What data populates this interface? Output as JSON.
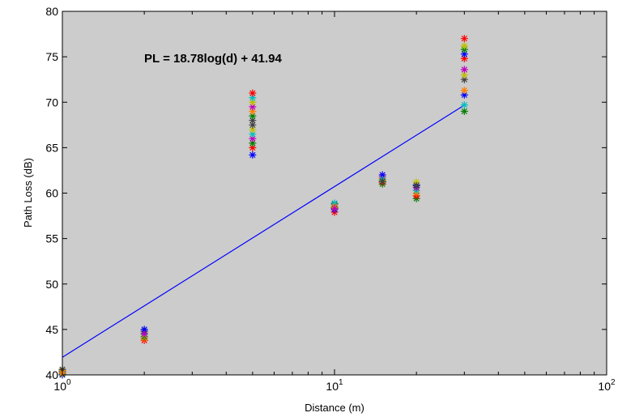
{
  "chart_data": {
    "type": "scatter",
    "title": "",
    "xlabel": "Distance (m)",
    "ylabel": "Path Loss (dB)",
    "x_scale": "log",
    "xlim": [
      1,
      100
    ],
    "ylim": [
      40,
      80
    ],
    "x_tick_labels": [
      "10",
      "10",
      "10"
    ],
    "x_tick_exponents": [
      "0",
      "1",
      "2"
    ],
    "x_tick_values": [
      1,
      10,
      100
    ],
    "y_ticks": [
      "40",
      "45",
      "50",
      "55",
      "60",
      "65",
      "70",
      "75",
      "80"
    ],
    "y_tick_values": [
      40,
      45,
      50,
      55,
      60,
      65,
      70,
      75,
      80
    ],
    "grid": false,
    "legend": false,
    "background": "#cccccc",
    "annotation": "PL = 18.78log(d) + 41.94",
    "fit_line": {
      "color": "#0000ff",
      "x": [
        1,
        30
      ],
      "y": [
        41.94,
        69.68
      ]
    },
    "marker": "*",
    "marker_colors": [
      "#0000ff",
      "#008000",
      "#ff0000",
      "#00bfbf",
      "#bf00bf",
      "#bfbf00",
      "#3f3f3f",
      "#ff8000"
    ],
    "points": [
      {
        "x": 1,
        "y": 40.0,
        "c": 0
      },
      {
        "x": 1,
        "y": 40.1,
        "c": 1
      },
      {
        "x": 1,
        "y": 40.2,
        "c": 2
      },
      {
        "x": 1,
        "y": 40.3,
        "c": 3
      },
      {
        "x": 1,
        "y": 40.4,
        "c": 4
      },
      {
        "x": 1,
        "y": 40.5,
        "c": 5
      },
      {
        "x": 1,
        "y": 40.6,
        "c": 6
      },
      {
        "x": 1,
        "y": 40.2,
        "c": 7
      },
      {
        "x": 2,
        "y": 43.8,
        "c": 2
      },
      {
        "x": 2,
        "y": 44.0,
        "c": 7
      },
      {
        "x": 2,
        "y": 44.2,
        "c": 1
      },
      {
        "x": 2,
        "y": 44.4,
        "c": 5
      },
      {
        "x": 2,
        "y": 44.6,
        "c": 3
      },
      {
        "x": 2,
        "y": 44.8,
        "c": 6
      },
      {
        "x": 2,
        "y": 45.0,
        "c": 0
      },
      {
        "x": 2,
        "y": 44.5,
        "c": 4
      },
      {
        "x": 5,
        "y": 64.2,
        "c": 0
      },
      {
        "x": 5,
        "y": 65.0,
        "c": 2
      },
      {
        "x": 5,
        "y": 65.5,
        "c": 1
      },
      {
        "x": 5,
        "y": 66.0,
        "c": 4
      },
      {
        "x": 5,
        "y": 66.5,
        "c": 3
      },
      {
        "x": 5,
        "y": 67.0,
        "c": 5
      },
      {
        "x": 5,
        "y": 67.5,
        "c": 6
      },
      {
        "x": 5,
        "y": 68.0,
        "c": 6
      },
      {
        "x": 5,
        "y": 68.5,
        "c": 1
      },
      {
        "x": 5,
        "y": 69.0,
        "c": 7
      },
      {
        "x": 5,
        "y": 69.5,
        "c": 4
      },
      {
        "x": 5,
        "y": 70.0,
        "c": 5
      },
      {
        "x": 5,
        "y": 70.5,
        "c": 3
      },
      {
        "x": 5,
        "y": 71.0,
        "c": 2
      },
      {
        "x": 10,
        "y": 57.9,
        "c": 2
      },
      {
        "x": 10,
        "y": 58.2,
        "c": 0
      },
      {
        "x": 10,
        "y": 58.4,
        "c": 1
      },
      {
        "x": 10,
        "y": 58.6,
        "c": 5
      },
      {
        "x": 10,
        "y": 58.8,
        "c": 6
      },
      {
        "x": 10,
        "y": 58.9,
        "c": 3
      },
      {
        "x": 10,
        "y": 58.5,
        "c": 7
      },
      {
        "x": 10,
        "y": 58.3,
        "c": 4
      },
      {
        "x": 15,
        "y": 61.0,
        "c": 1
      },
      {
        "x": 15,
        "y": 61.2,
        "c": 2
      },
      {
        "x": 15,
        "y": 61.4,
        "c": 5
      },
      {
        "x": 15,
        "y": 61.6,
        "c": 7
      },
      {
        "x": 15,
        "y": 61.8,
        "c": 4
      },
      {
        "x": 15,
        "y": 62.0,
        "c": 0
      },
      {
        "x": 15,
        "y": 61.5,
        "c": 3
      },
      {
        "x": 15,
        "y": 61.3,
        "c": 6
      },
      {
        "x": 20,
        "y": 59.4,
        "c": 1
      },
      {
        "x": 20,
        "y": 59.7,
        "c": 2
      },
      {
        "x": 20,
        "y": 60.0,
        "c": 7
      },
      {
        "x": 20,
        "y": 60.3,
        "c": 3
      },
      {
        "x": 20,
        "y": 60.6,
        "c": 4
      },
      {
        "x": 20,
        "y": 60.9,
        "c": 0
      },
      {
        "x": 20,
        "y": 61.2,
        "c": 5
      },
      {
        "x": 20,
        "y": 60.8,
        "c": 6
      },
      {
        "x": 30,
        "y": 69.0,
        "c": 1
      },
      {
        "x": 30,
        "y": 69.7,
        "c": 3
      },
      {
        "x": 30,
        "y": 70.8,
        "c": 0
      },
      {
        "x": 30,
        "y": 71.3,
        "c": 7
      },
      {
        "x": 30,
        "y": 72.5,
        "c": 6
      },
      {
        "x": 30,
        "y": 73.0,
        "c": 5
      },
      {
        "x": 30,
        "y": 73.6,
        "c": 4
      },
      {
        "x": 30,
        "y": 74.8,
        "c": 2
      },
      {
        "x": 30,
        "y": 75.3,
        "c": 0
      },
      {
        "x": 30,
        "y": 75.8,
        "c": 1
      },
      {
        "x": 30,
        "y": 76.2,
        "c": 5
      },
      {
        "x": 30,
        "y": 77.0,
        "c": 2
      }
    ]
  }
}
